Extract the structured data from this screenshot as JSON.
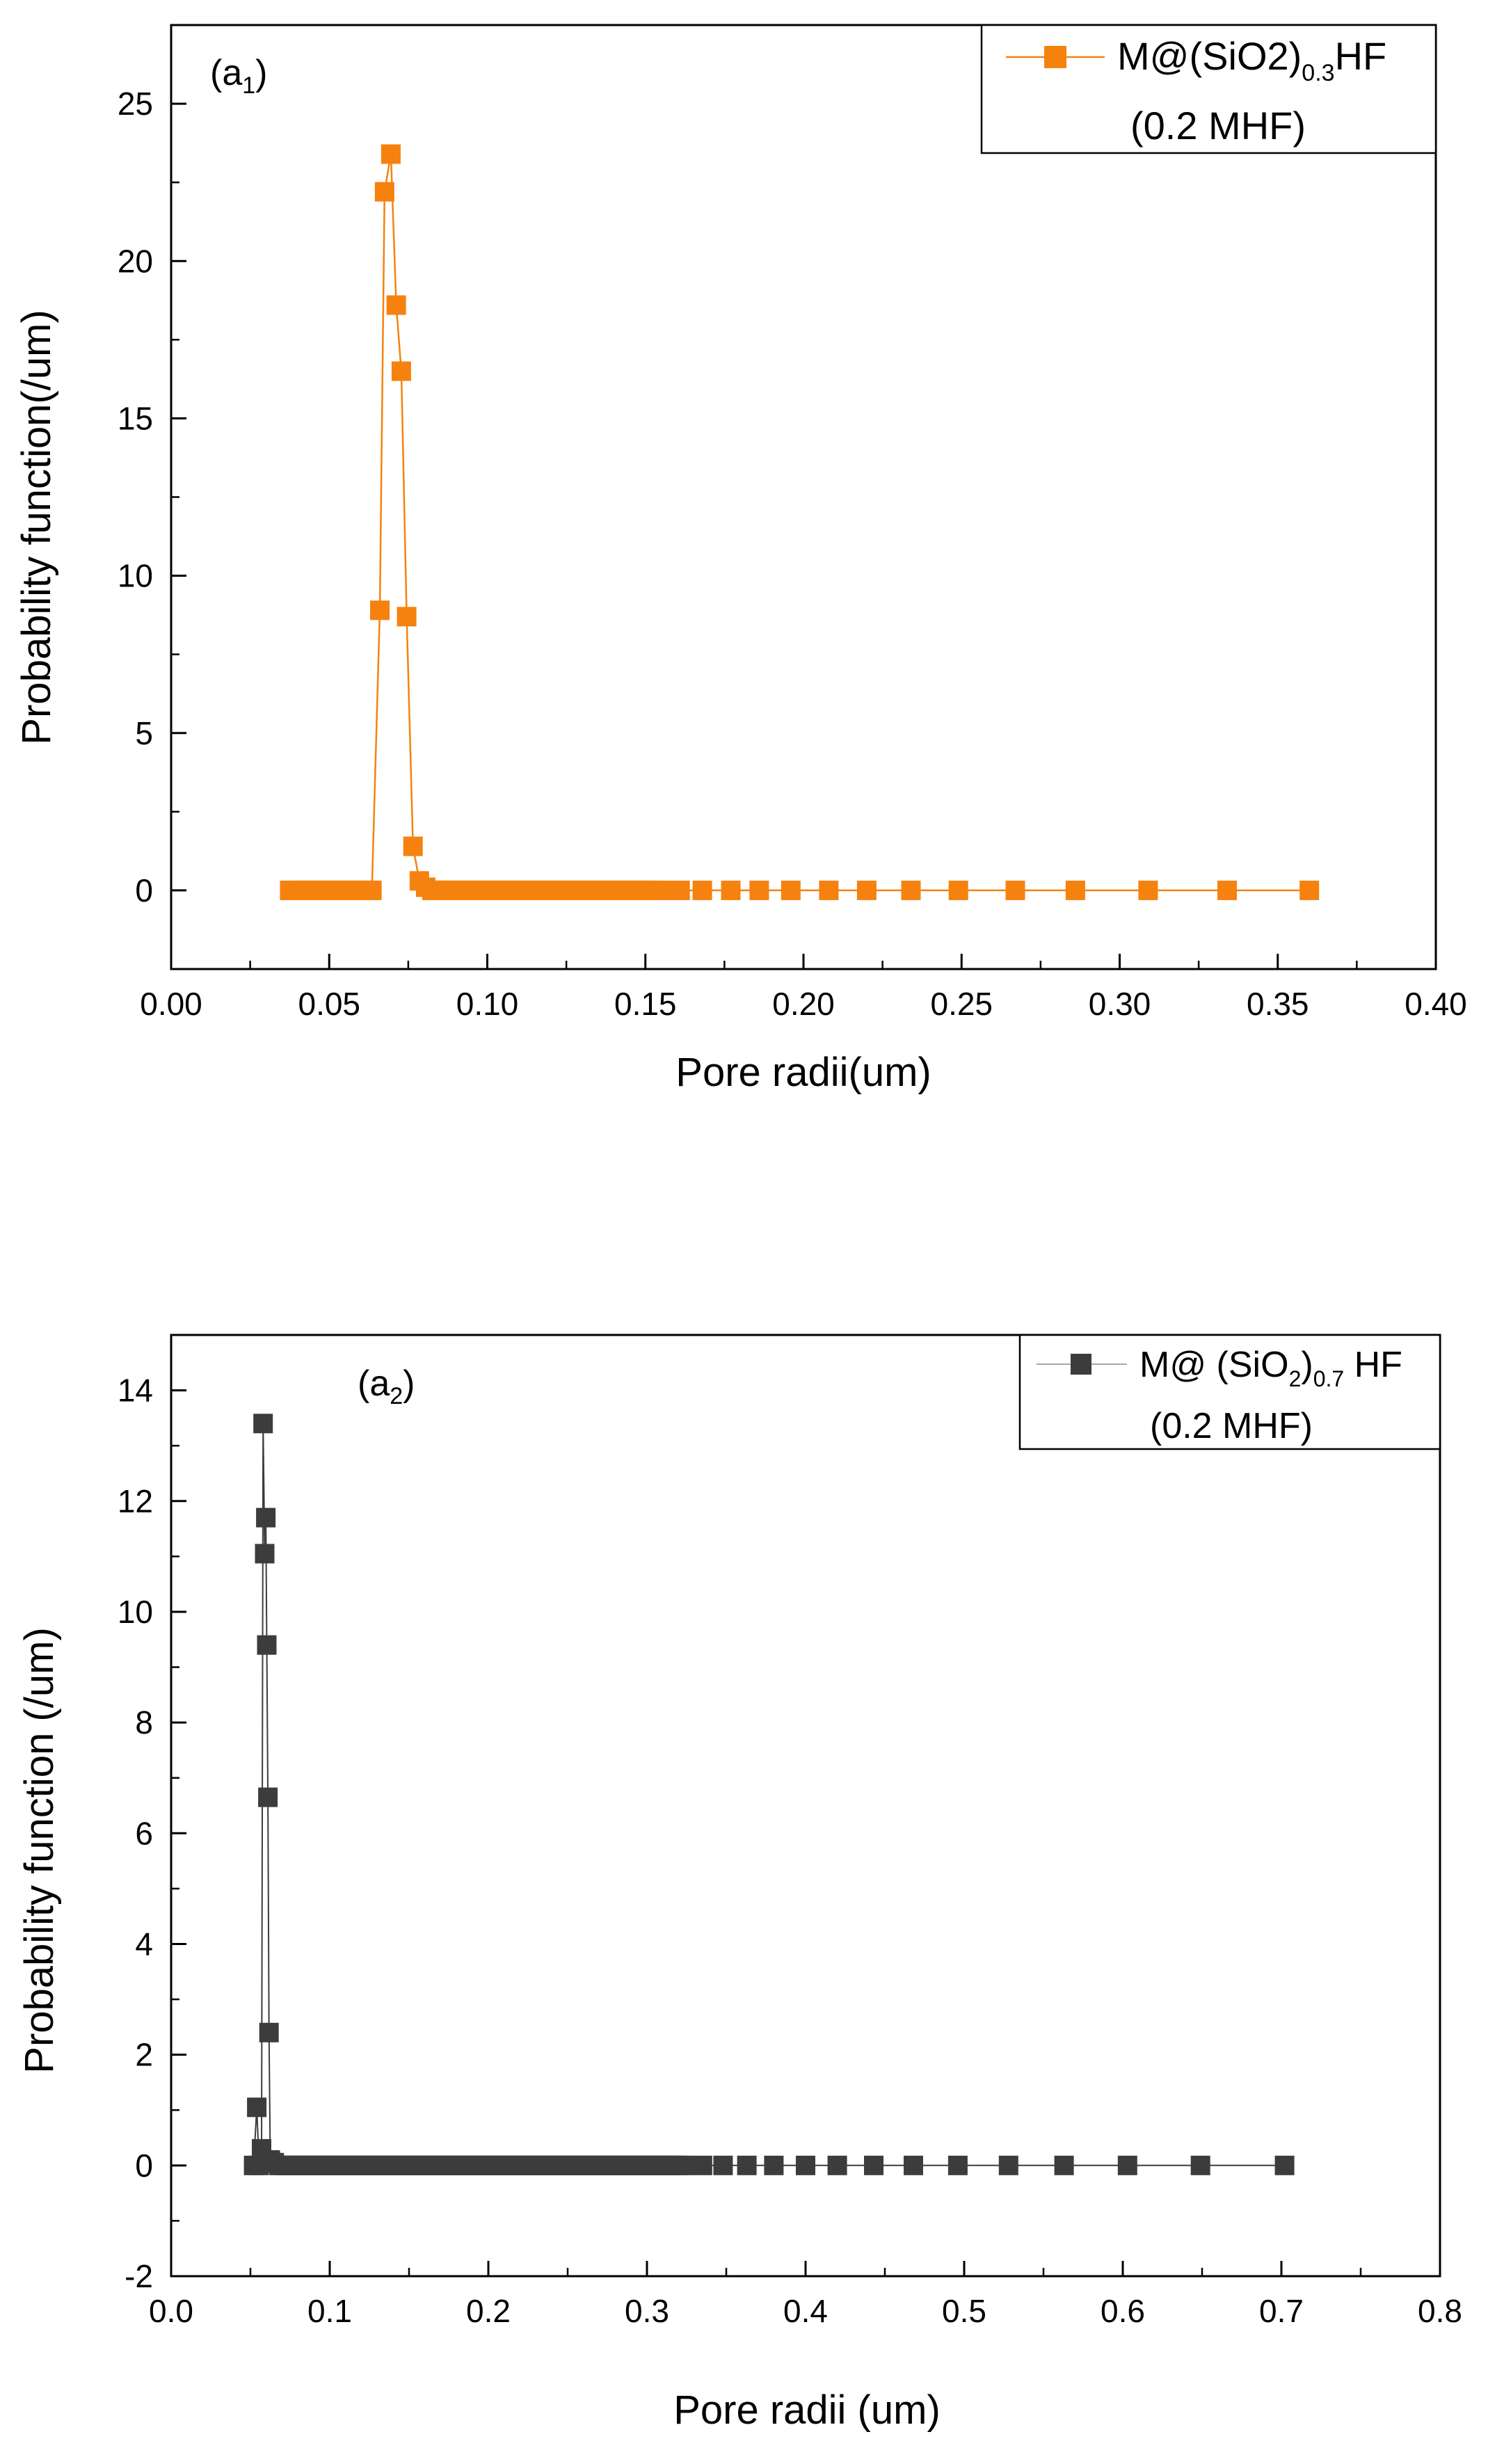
{
  "chart_data": [
    {
      "type": "line",
      "panel_label": {
        "main": "(a",
        "sub": "1",
        "close": ")"
      },
      "xlabel": "Pore radii(um)",
      "ylabel": "Probability function(/um)",
      "xlim": [
        0.0,
        0.4
      ],
      "ylim": [
        -2.5,
        27.5
      ],
      "xticks": [
        "0.00",
        "0.05",
        "0.10",
        "0.15",
        "0.20",
        "0.25",
        "0.30",
        "0.35",
        "0.40"
      ],
      "yticks": [
        "0",
        "5",
        "10",
        "15",
        "20",
        "25"
      ],
      "legend": {
        "placement": "top-right",
        "line1": {
          "main": "M@(SiO2)",
          "sub": "0.3",
          "tail": "HF"
        },
        "line2": "(0.2 MHF)"
      },
      "series": [
        {
          "color": "#f5820f",
          "marker": "square",
          "x": [
            0.0375,
            0.0395,
            0.0415,
            0.0435,
            0.0455,
            0.0475,
            0.0495,
            0.0515,
            0.0535,
            0.0555,
            0.0575,
            0.0595,
            0.0615,
            0.0635,
            0.066,
            0.0675,
            0.0695,
            0.0712,
            0.0728,
            0.0745,
            0.0765,
            0.0785,
            0.0805,
            0.0825,
            0.0845,
            0.0865,
            0.0885,
            0.0905,
            0.0925,
            0.0945,
            0.0965,
            0.0985,
            0.1005,
            0.1025,
            0.1045,
            0.1065,
            0.1085,
            0.1105,
            0.1125,
            0.1145,
            0.1165,
            0.1185,
            0.1205,
            0.1225,
            0.1245,
            0.1265,
            0.1285,
            0.1305,
            0.1325,
            0.1345,
            0.1365,
            0.1385,
            0.1405,
            0.1425,
            0.1445,
            0.1465,
            0.1485,
            0.1505,
            0.1525,
            0.155,
            0.161,
            0.168,
            0.177,
            0.186,
            0.196,
            0.208,
            0.22,
            0.234,
            0.249,
            0.267,
            0.286,
            0.309,
            0.334,
            0.36
          ],
          "values": [
            0,
            0,
            0,
            0,
            0,
            0,
            0,
            0,
            0,
            0,
            0,
            0,
            0,
            0,
            8.9,
            22.2,
            23.4,
            18.6,
            16.5,
            8.7,
            1.4,
            0.3,
            0.1,
            0,
            0,
            0,
            0,
            0,
            0,
            0,
            0,
            0,
            0,
            0,
            0,
            0,
            0,
            0,
            0,
            0,
            0,
            0,
            0,
            0,
            0,
            0,
            0,
            0,
            0,
            0,
            0,
            0,
            0,
            0,
            0,
            0,
            0,
            0,
            0,
            0,
            0,
            0,
            0,
            0,
            0,
            0,
            0,
            0,
            0,
            0,
            0,
            0,
            0,
            0
          ]
        }
      ]
    },
    {
      "type": "line",
      "panel_label": {
        "main": "(a",
        "sub": "2",
        "close": ")"
      },
      "xlabel": "Pore radii (um)",
      "ylabel": "Probability function (/um)",
      "xlim": [
        0.0,
        0.8
      ],
      "ylim": [
        -2,
        15
      ],
      "xticks": [
        "0.0",
        "0.1",
        "0.2",
        "0.3",
        "0.4",
        "0.5",
        "0.6",
        "0.7",
        "0.8"
      ],
      "yticks": [
        "-2",
        "0",
        "2",
        "4",
        "6",
        "8",
        "10",
        "12",
        "14"
      ],
      "legend": {
        "placement": "top-right",
        "line1": {
          "main": "M@ (SiO",
          "sub1": "2",
          "mid": ")",
          "sub2": "0.7",
          "tail": " HF"
        },
        "line2": "(0.2 MHF)"
      },
      "series": [
        {
          "color": "#3c3c3c",
          "marker": "square",
          "x": [
            0.052,
            0.054,
            0.0555,
            0.057,
            0.058,
            0.059,
            0.0597,
            0.0603,
            0.061,
            0.0617,
            0.0625,
            0.0635,
            0.065,
            0.068,
            0.071,
            0.074,
            0.077,
            0.08,
            0.083,
            0.086,
            0.089,
            0.092,
            0.095,
            0.098,
            0.101,
            0.104,
            0.107,
            0.11,
            0.113,
            0.116,
            0.119,
            0.122,
            0.125,
            0.128,
            0.131,
            0.134,
            0.137,
            0.14,
            0.143,
            0.146,
            0.149,
            0.152,
            0.155,
            0.158,
            0.161,
            0.164,
            0.167,
            0.17,
            0.173,
            0.176,
            0.179,
            0.182,
            0.185,
            0.188,
            0.191,
            0.194,
            0.197,
            0.2,
            0.203,
            0.206,
            0.209,
            0.212,
            0.215,
            0.218,
            0.221,
            0.224,
            0.227,
            0.23,
            0.233,
            0.236,
            0.239,
            0.242,
            0.245,
            0.248,
            0.251,
            0.254,
            0.257,
            0.26,
            0.263,
            0.266,
            0.269,
            0.272,
            0.275,
            0.278,
            0.281,
            0.284,
            0.287,
            0.29,
            0.293,
            0.296,
            0.299,
            0.302,
            0.305,
            0.308,
            0.311,
            0.314,
            0.317,
            0.32,
            0.323,
            0.335,
            0.348,
            0.363,
            0.38,
            0.4,
            0.42,
            0.443,
            0.468,
            0.496,
            0.528,
            0.563,
            0.603,
            0.649,
            0.702
          ],
          "values": [
            0,
            1.05,
            0,
            0.3,
            13.4,
            11.05,
            11.7,
            9.4,
            6.65,
            2.4,
            0.1,
            0.05,
            0.05,
            0,
            0,
            0,
            0,
            0,
            0,
            0,
            0,
            0,
            0,
            0,
            0,
            0,
            0,
            0,
            0,
            0,
            0,
            0,
            0,
            0,
            0,
            0,
            0,
            0,
            0,
            0,
            0,
            0,
            0,
            0,
            0,
            0,
            0,
            0,
            0,
            0,
            0,
            0,
            0,
            0,
            0,
            0,
            0,
            0,
            0,
            0,
            0,
            0,
            0,
            0,
            0,
            0,
            0,
            0,
            0,
            0,
            0,
            0,
            0,
            0,
            0,
            0,
            0,
            0,
            0,
            0,
            0,
            0,
            0,
            0,
            0,
            0,
            0,
            0,
            0,
            0,
            0,
            0,
            0,
            0,
            0,
            0,
            0,
            0,
            0,
            0,
            0,
            0,
            0,
            0,
            0,
            0,
            0,
            0,
            0,
            0,
            0,
            0,
            0
          ]
        }
      ]
    }
  ]
}
